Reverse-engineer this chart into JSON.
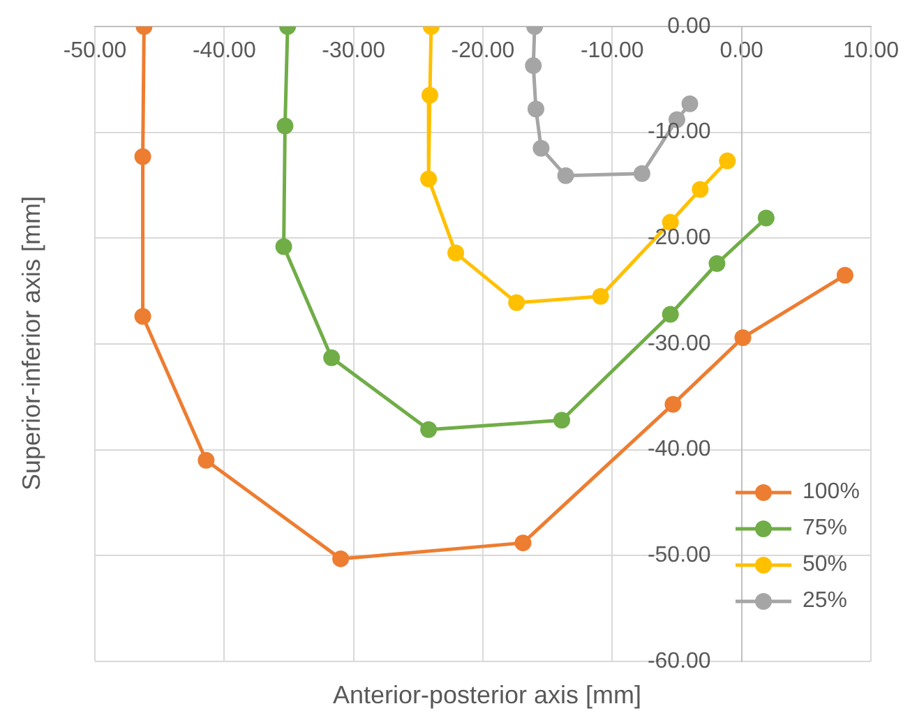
{
  "chart_data": {
    "type": "line",
    "xlabel": "Anterior-posterior axis [mm]",
    "ylabel": "Superior-inferior axis [mm]",
    "xlim": [
      -50,
      10
    ],
    "ylim": [
      -60,
      0
    ],
    "xticks": [
      {
        "value": -50,
        "label": "-50.00"
      },
      {
        "value": -40,
        "label": "-40.00"
      },
      {
        "value": -30,
        "label": "-30.00"
      },
      {
        "value": -20,
        "label": "-20.00"
      },
      {
        "value": -10,
        "label": "-10.00"
      },
      {
        "value": 0,
        "label": "0.00"
      },
      {
        "value": 10,
        "label": "10.00"
      }
    ],
    "yticks": [
      {
        "value": 0,
        "label": "0.00"
      },
      {
        "value": -10,
        "label": "-10.00"
      },
      {
        "value": -20,
        "label": "-20.00"
      },
      {
        "value": -30,
        "label": "-30.00"
      },
      {
        "value": -40,
        "label": "-40.00"
      },
      {
        "value": -50,
        "label": "-50.00"
      },
      {
        "value": -60,
        "label": "-60.00"
      }
    ],
    "grid": true,
    "legend": "bottom right",
    "marker": "circle",
    "line_style": "solid",
    "series": [
      {
        "name": "100%",
        "color": "#ed7d31",
        "x": [
          -46.2,
          -46.3,
          -46.3,
          -41.4,
          -31.0,
          -16.9,
          -5.3,
          0.1,
          8.0
        ],
        "values": [
          0,
          -12.3,
          -27.4,
          -41.0,
          -50.3,
          -48.8,
          -35.7,
          -29.4,
          -23.5
        ]
      },
      {
        "name": "75%",
        "color": "#70ad47",
        "x": [
          -35.1,
          -35.3,
          -35.4,
          -31.7,
          -24.2,
          -13.9,
          -5.5,
          -1.9,
          1.9
        ],
        "values": [
          0,
          -9.4,
          -20.8,
          -31.3,
          -38.1,
          -37.2,
          -27.2,
          -22.4,
          -18.1
        ]
      },
      {
        "name": "50%",
        "color": "#ffc000",
        "x": [
          -24.0,
          -24.1,
          -24.2,
          -22.1,
          -17.4,
          -10.9,
          -5.5,
          -3.2,
          -1.1
        ],
        "values": [
          0,
          -6.5,
          -14.4,
          -21.4,
          -26.1,
          -25.5,
          -18.5,
          -15.4,
          -12.7
        ]
      },
      {
        "name": "25%",
        "color": "#a5a5a5",
        "x": [
          -16.0,
          -16.1,
          -15.9,
          -15.5,
          -13.6,
          -7.7,
          -5.0,
          -4.0
        ],
        "values": [
          0,
          -3.7,
          -7.8,
          -11.5,
          -14.1,
          -13.9,
          -8.8,
          -7.3
        ]
      }
    ]
  }
}
